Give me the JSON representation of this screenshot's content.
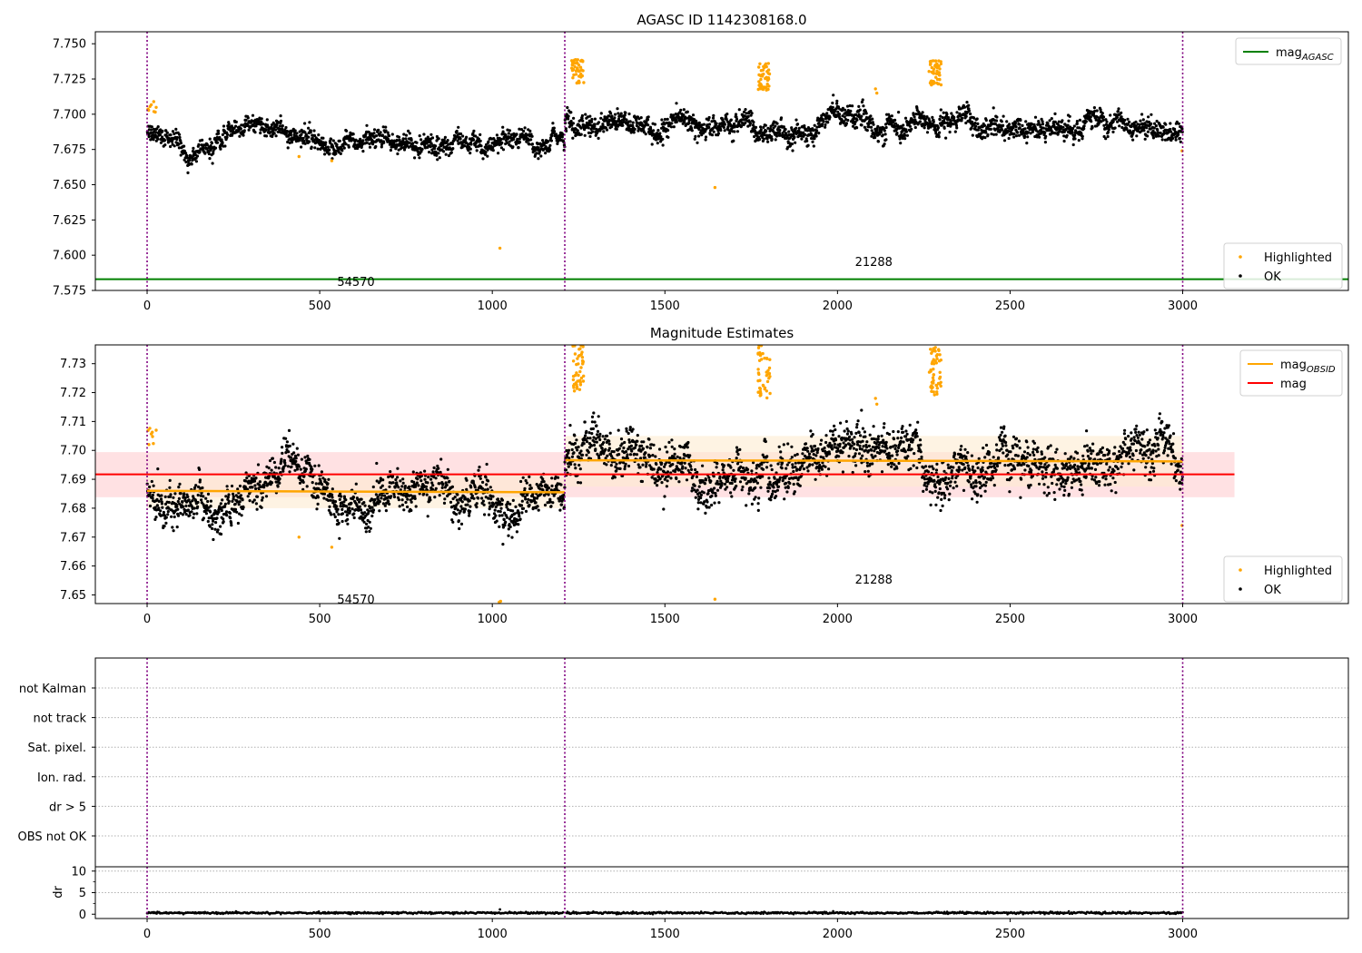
{
  "colors": {
    "ok": "#000000",
    "highlighted": "#ffa500",
    "mag_agasc": "#008000",
    "mag_obsid": "#ffa500",
    "mag": "#ff0000",
    "band_mag": "#ffc8cc",
    "band_obsid": "#fdebd0",
    "obs_boundary": "#800080",
    "grid": "#b0b0b0"
  },
  "chart_data": [
    {
      "type": "scatter",
      "title": "AGASC ID 1142308168.0",
      "xlim": [
        -150,
        3480
      ],
      "ylim": [
        7.575,
        7.7585
      ],
      "xticks": [
        0,
        500,
        1000,
        1500,
        2000,
        2500,
        3000
      ],
      "yticks": [
        7.575,
        7.6,
        7.625,
        7.65,
        7.675,
        7.7,
        7.725,
        7.75
      ],
      "ytick_labels": [
        "7.575",
        "7.600",
        "7.625",
        "7.650",
        "7.675",
        "7.700",
        "7.725",
        "7.750"
      ],
      "obs_boundaries": [
        0,
        1210,
        3000
      ],
      "obsid_labels": [
        {
          "text": "54570",
          "x": 605,
          "y": 7.5815
        },
        {
          "text": "21288",
          "x": 2105,
          "y": 7.5955
        }
      ],
      "lines": [
        {
          "name": "mag_AGASC",
          "y": 7.583,
          "x": [
            -150,
            3480
          ]
        }
      ],
      "legend_lines": [
        {
          "label": "mag",
          "sub": "AGASC",
          "color": "#008000"
        }
      ],
      "legend_points": [
        {
          "label": "Highlighted",
          "color": "#ffa500"
        },
        {
          "label": "OK",
          "color": "#000000"
        }
      ],
      "segments": [
        {
          "x0": 0,
          "x1": 1210,
          "mean": 7.687,
          "spread": 0.0045,
          "slope": -0.003
        },
        {
          "x0": 1210,
          "x1": 3000,
          "mean": 7.696,
          "spread": 0.0055,
          "slope": 0.0
        }
      ],
      "highlighted_clusters": [
        {
          "x0": 0,
          "x1": 30,
          "y0": 7.701,
          "y1": 7.709,
          "n": 8
        },
        {
          "x0": 1230,
          "x1": 1265,
          "y0": 7.722,
          "y1": 7.739,
          "n": 45
        },
        {
          "x0": 1770,
          "x1": 1805,
          "y0": 7.717,
          "y1": 7.737,
          "n": 45
        },
        {
          "x0": 2265,
          "x1": 2300,
          "y0": 7.718,
          "y1": 7.739,
          "n": 50
        }
      ],
      "highlighted_points": [
        [
          440,
          7.67
        ],
        [
          535,
          7.667
        ],
        [
          1022,
          7.605
        ],
        [
          1645,
          7.648
        ],
        [
          2110,
          7.718
        ],
        [
          2114,
          7.715
        ],
        [
          2998,
          7.674
        ]
      ]
    },
    {
      "type": "scatter",
      "title": "Magnitude Estimates",
      "xlim": [
        -150,
        3480
      ],
      "ylim": [
        7.647,
        7.7365
      ],
      "xticks": [
        0,
        500,
        1000,
        1500,
        2000,
        2500,
        3000
      ],
      "yticks": [
        7.65,
        7.66,
        7.67,
        7.68,
        7.69,
        7.7,
        7.71,
        7.72,
        7.73
      ],
      "ytick_labels": [
        "7.65",
        "7.66",
        "7.67",
        "7.68",
        "7.69",
        "7.70",
        "7.71",
        "7.72",
        "7.73"
      ],
      "obs_boundaries": [
        0,
        1210,
        3000
      ],
      "obsid_labels": [
        {
          "text": "54570",
          "x": 605,
          "y": 7.6485
        },
        {
          "text": "21288",
          "x": 2105,
          "y": 7.6555
        }
      ],
      "mag_line": {
        "y": 7.6917,
        "x": [
          -150,
          3150
        ],
        "band": [
          7.6838,
          7.6994
        ]
      },
      "obsid_lines": [
        {
          "x": [
            0,
            1210
          ],
          "y": [
            7.686,
            7.6855
          ],
          "band": [
            7.68,
            7.692
          ]
        },
        {
          "x": [
            1210,
            3000
          ],
          "y": [
            7.6966,
            7.6962
          ],
          "band": [
            7.6875,
            7.705
          ]
        }
      ],
      "legend_lines": [
        {
          "label": "mag",
          "sub": "OBSID",
          "color": "#ffa500"
        },
        {
          "label": "mag",
          "sub": "",
          "color": "#ff0000"
        }
      ],
      "legend_points": [
        {
          "label": "Highlighted",
          "color": "#ffa500"
        },
        {
          "label": "OK",
          "color": "#000000"
        }
      ],
      "segments": [
        {
          "x0": 0,
          "x1": 1210,
          "mean": 7.687,
          "spread": 0.0045,
          "slope": -0.003
        },
        {
          "x0": 1210,
          "x1": 3000,
          "mean": 7.696,
          "spread": 0.0055,
          "slope": 0.0
        }
      ],
      "highlighted_clusters": [
        {
          "x0": 0,
          "x1": 30,
          "y0": 7.702,
          "y1": 7.709,
          "n": 8
        },
        {
          "x0": 1230,
          "x1": 1265,
          "y0": 7.72,
          "y1": 7.7365,
          "n": 45
        },
        {
          "x0": 1770,
          "x1": 1805,
          "y0": 7.717,
          "y1": 7.7365,
          "n": 45
        },
        {
          "x0": 2265,
          "x1": 2300,
          "y0": 7.719,
          "y1": 7.7365,
          "n": 50
        }
      ],
      "highlighted_points": [
        [
          440,
          7.67
        ],
        [
          535,
          7.6665
        ],
        [
          1020,
          7.6475
        ],
        [
          1024,
          7.6478
        ],
        [
          1645,
          7.6485
        ],
        [
          2110,
          7.718
        ],
        [
          2114,
          7.716
        ],
        [
          2998,
          7.674
        ]
      ]
    },
    {
      "type": "table",
      "title": "",
      "xlim": [
        -150,
        3480
      ],
      "obs_boundaries": [
        0,
        1210,
        3000
      ],
      "categories": [
        "not Kalman",
        "not track",
        "Sat. pixel.",
        "Ion. rad.",
        "dr > 5",
        "OBS not OK"
      ],
      "flags": []
    },
    {
      "type": "line",
      "title": "",
      "ylabel": "dr",
      "xlim": [
        -150,
        3480
      ],
      "ylim": [
        -1,
        11
      ],
      "xticks": [
        0,
        500,
        1000,
        1500,
        2000,
        2500,
        3000
      ],
      "yticks": [
        0,
        5,
        10
      ],
      "ytick_labels": [
        "0",
        "5",
        "10"
      ],
      "obs_boundaries": [
        0,
        1210,
        3000
      ],
      "dr_mean": 0.3,
      "dr_spike": [
        1022,
        1.1
      ]
    }
  ]
}
